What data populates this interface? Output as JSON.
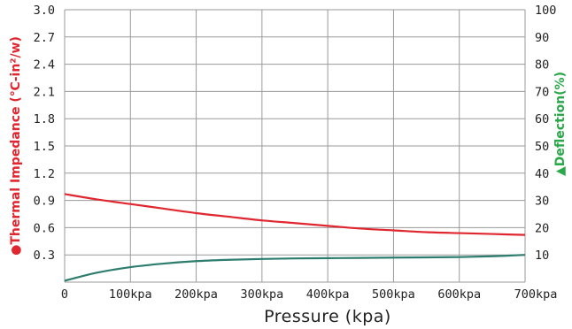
{
  "chart_data": {
    "type": "line",
    "title": "",
    "xlabel": "Pressure (kpa)",
    "x_ticks": [
      "0",
      "100kpa",
      "200kpa",
      "300kpa",
      "400kpa",
      "500kpa",
      "600kpa",
      "700kpa"
    ],
    "xlim": [
      0,
      700
    ],
    "grid": true,
    "left_axis": {
      "label_marker": "●",
      "label": "Thermal Impedance (℃-in²/w)",
      "color": "#e0262f",
      "ylim": [
        0,
        3.0
      ],
      "ticks": [
        "3.0",
        "2.7",
        "2.4",
        "2.1",
        "1.8",
        "1.5",
        "1.2",
        "0.9",
        "0.6",
        "0.3"
      ]
    },
    "right_axis": {
      "label_marker": "▲",
      "label": "Deflection(%)",
      "color": "#2aa84a",
      "ylim": [
        0,
        100
      ],
      "ticks": [
        "100",
        "90",
        "80",
        "70",
        "60",
        "50",
        "40",
        "30",
        "20",
        "10"
      ]
    },
    "series": [
      {
        "axis": "left",
        "color": "#e0262f",
        "x": [
          0,
          50,
          100,
          150,
          200,
          250,
          300,
          350,
          400,
          450,
          500,
          550,
          600,
          650,
          700
        ],
        "y": [
          0.97,
          0.91,
          0.86,
          0.81,
          0.76,
          0.72,
          0.68,
          0.65,
          0.62,
          0.59,
          0.57,
          0.55,
          0.54,
          0.53,
          0.52
        ]
      },
      {
        "axis": "right",
        "color": "#2d7d6e",
        "x": [
          0,
          50,
          100,
          150,
          200,
          250,
          300,
          350,
          400,
          450,
          500,
          550,
          600,
          650,
          700
        ],
        "y": [
          0.5,
          3.5,
          5.5,
          6.8,
          7.7,
          8.2,
          8.5,
          8.7,
          8.8,
          8.9,
          9.0,
          9.1,
          9.2,
          9.5,
          10.0
        ]
      }
    ]
  }
}
